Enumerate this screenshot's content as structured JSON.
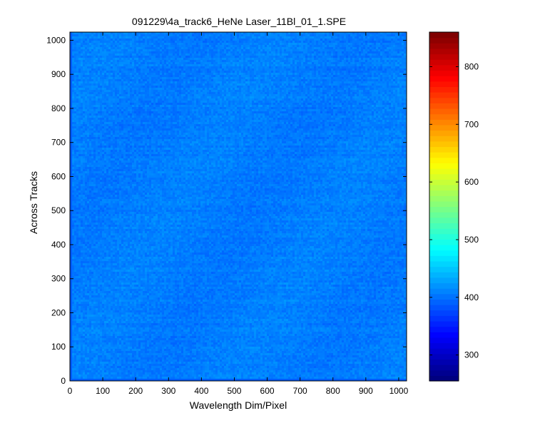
{
  "chart_data": {
    "type": "heatmap",
    "title": "091229\\4a_track6_HeNe Laser_11Bl_01_1.SPE",
    "xlabel": "Wavelength Dim/Pixel",
    "ylabel": "Across Tracks",
    "xlim": [
      0,
      1024
    ],
    "ylim": [
      0,
      1024
    ],
    "x_ticks": [
      0,
      100,
      200,
      300,
      400,
      500,
      600,
      700,
      800,
      900,
      1000
    ],
    "y_ticks": [
      0,
      100,
      200,
      300,
      400,
      500,
      600,
      700,
      800,
      900,
      1000
    ],
    "colorbar": {
      "colormap": "jet",
      "range": [
        255,
        860
      ],
      "ticks": [
        300,
        400,
        500,
        600,
        700,
        800
      ]
    },
    "field": {
      "description_value": "nearly uniform intensity",
      "mean_value": 405,
      "noise_amplitude": 12,
      "edge_value": 385
    },
    "grid": false,
    "legend": "none"
  },
  "colors": {
    "frame": "#000000",
    "background": "#ffffff"
  }
}
